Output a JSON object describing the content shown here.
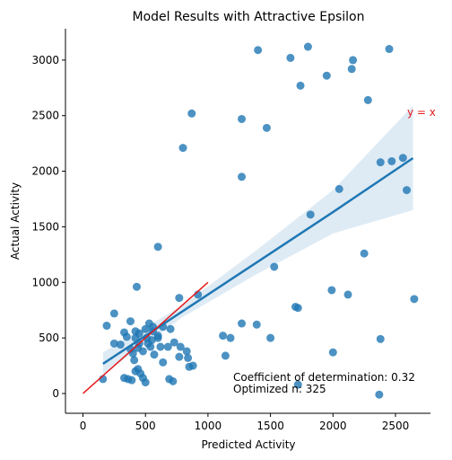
{
  "chart_data": {
    "type": "scatter",
    "title": "Model Results with Attractive Epsilon",
    "xlabel": "Predicted Activity",
    "ylabel": "Actual Activity",
    "xlim": [
      -140,
      2780
    ],
    "ylim": [
      -178,
      3282
    ],
    "xticks": [
      0,
      500,
      1000,
      1500,
      2000,
      2500
    ],
    "yticks": [
      0,
      500,
      1000,
      1500,
      2000,
      2500,
      3000
    ],
    "color": "#1f77b4",
    "x": [
      1400,
      1660,
      1800,
      1740,
      1950,
      2160,
      2150,
      2450,
      2280,
      870,
      1270,
      1470,
      800,
      1270,
      2380,
      2470,
      2560,
      2050,
      2590,
      1820,
      600,
      1530,
      2250,
      430,
      1990,
      2120,
      2650,
      1700,
      1720,
      770,
      920,
      1270,
      1390,
      1500,
      1120,
      1180,
      1140,
      2380,
      2000,
      1720,
      2370,
      190,
      250,
      380,
      420,
      450,
      500,
      530,
      560,
      600,
      640,
      700,
      680,
      730,
      780,
      830,
      840,
      850,
      880,
      770,
      250,
      300,
      330,
      350,
      380,
      400,
      410,
      420,
      440,
      460,
      480,
      500,
      360,
      330,
      390,
      160,
      520,
      550,
      570,
      600,
      620,
      690,
      720,
      640,
      450,
      480,
      510,
      540,
      440,
      420,
      560
    ],
    "y": [
      3090,
      3020,
      3120,
      2770,
      2860,
      3000,
      2920,
      3100,
      2640,
      2520,
      2470,
      2390,
      2210,
      1950,
      2080,
      2090,
      2120,
      1840,
      1830,
      1610,
      1320,
      1140,
      1260,
      960,
      930,
      890,
      850,
      780,
      770,
      860,
      890,
      630,
      620,
      500,
      520,
      500,
      340,
      490,
      370,
      80,
      -10,
      610,
      720,
      650,
      560,
      540,
      580,
      630,
      600,
      520,
      280,
      580,
      420,
      460,
      420,
      380,
      320,
      240,
      250,
      330,
      450,
      440,
      550,
      510,
      400,
      360,
      300,
      200,
      220,
      180,
      140,
      100,
      130,
      140,
      120,
      130,
      450,
      480,
      350,
      500,
      420,
      130,
      110,
      600,
      450,
      380,
      500,
      420,
      410,
      500,
      560
    ],
    "regression": {
      "color": "#1f77b4",
      "x": [
        160,
        800,
        1400,
        2000,
        2640
      ],
      "y": [
        267,
        742,
        1187,
        1632,
        2118
      ],
      "lower": [
        170,
        690,
        1080,
        1440,
        1650
      ],
      "upper": [
        370,
        795,
        1300,
        1830,
        2590
      ]
    },
    "identity": {
      "color": "#e41a1c",
      "label": "y = x",
      "x": [
        0,
        1000
      ],
      "y": [
        0,
        1000
      ]
    },
    "annotations": [
      "Coefficient of determination: 0.32",
      "Optimized n: 325"
    ]
  }
}
